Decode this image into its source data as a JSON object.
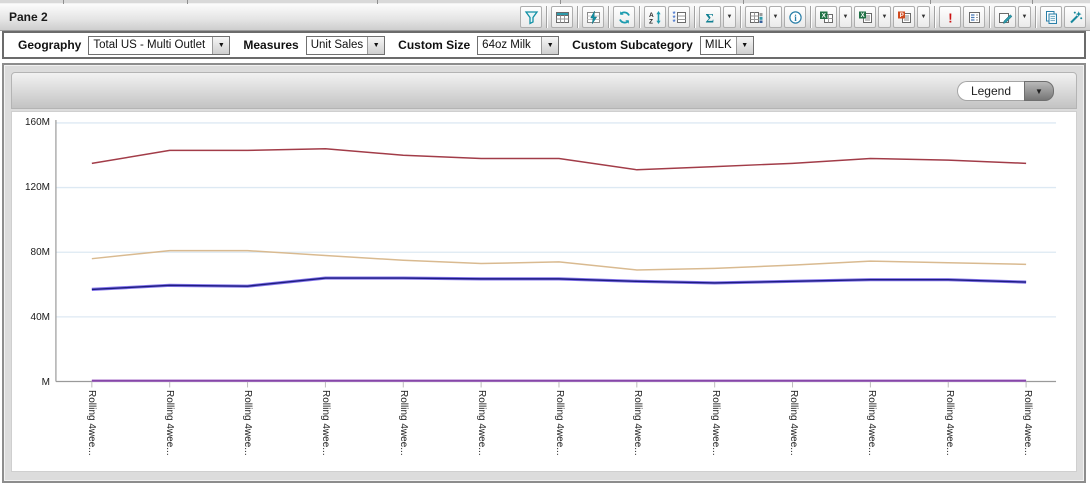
{
  "window": {
    "title": "Pane 2"
  },
  "toolbar": {
    "buttons": [
      {
        "icon": "filter-icon",
        "caret": false
      },
      {
        "icon": "data-table-icon",
        "caret": false
      },
      {
        "icon": "calculated-fields-icon",
        "caret": false
      },
      {
        "icon": "refresh-icon",
        "caret": false
      },
      {
        "icon": "sort-icon",
        "caret": false
      },
      {
        "icon": "multi-select-grid-icon",
        "caret": false
      },
      {
        "icon": "sum-icon",
        "caret": true
      },
      {
        "icon": "grid-view-icon",
        "caret": true
      },
      {
        "icon": "info-icon",
        "caret": false
      },
      {
        "icon": "export-excel-grid-icon",
        "caret": true
      },
      {
        "icon": "export-excel-report-icon",
        "caret": true
      },
      {
        "icon": "export-powerpoint-icon",
        "caret": true
      },
      {
        "icon": "alert-icon",
        "caret": false
      },
      {
        "icon": "report-view-icon",
        "caret": false
      },
      {
        "icon": "edit-icon",
        "caret": true
      },
      {
        "icon": "copy-icon",
        "caret": false
      },
      {
        "icon": "wizard-icon",
        "caret": false
      }
    ]
  },
  "filters": {
    "geography": {
      "label": "Geography",
      "value": "Total US - Multi Outlet"
    },
    "measures": {
      "label": "Measures",
      "value": "Unit Sales"
    },
    "custom_size": {
      "label": "Custom Size",
      "value": "64oz Milk"
    },
    "custom_subcategory": {
      "label": "Custom Subcategory",
      "value": "MILK"
    }
  },
  "legend": {
    "label": "Legend",
    "state": "collapsed"
  },
  "chart_data": {
    "type": "line",
    "title": "",
    "xlabel": "",
    "ylabel": "",
    "ylim": [
      0,
      160
    ],
    "grid": true,
    "legend_position": "collapsed-top-right",
    "unit": "M",
    "categories": [
      "Rolling 4wee...",
      "Rolling 4wee...",
      "Rolling 4wee...",
      "Rolling 4wee...",
      "Rolling 4wee...",
      "Rolling 4wee...",
      "Rolling 4wee...",
      "Rolling 4wee...",
      "Rolling 4wee...",
      "Rolling 4wee...",
      "Rolling 4wee...",
      "Rolling 4wee...",
      "Rolling 4wee..."
    ],
    "yticks": [
      {
        "label": "160M",
        "value": 160
      },
      {
        "label": "120M",
        "value": 120
      },
      {
        "label": "80M",
        "value": 80
      },
      {
        "label": "40M",
        "value": 40
      },
      {
        "label": "M",
        "value": 0
      }
    ],
    "series": [
      {
        "name": "series-red",
        "color": "#a23c48",
        "width": 1.5,
        "values": [
          135,
          143,
          143,
          144,
          140,
          138,
          138,
          131,
          133,
          135,
          138,
          137,
          135
        ]
      },
      {
        "name": "series-tan",
        "color": "#d9ba90",
        "width": 1.5,
        "values": [
          76,
          81,
          81,
          78,
          75,
          73,
          74,
          69,
          70,
          72,
          74.5,
          73.5,
          72.5
        ]
      },
      {
        "name": "series-blue-highlighted",
        "color": "#8374ea",
        "width": 3.2,
        "core": "#1c1c80",
        "core_width": 1.4,
        "values": [
          57,
          59.5,
          59,
          64,
          64,
          63.5,
          63.5,
          62,
          61,
          62,
          63,
          63,
          61.5
        ]
      },
      {
        "name": "series-purple",
        "color": "#a76cc8",
        "width": 2.4,
        "core": "#7b3b9e",
        "core_width": 1,
        "values": [
          0.5,
          0.5,
          0.5,
          0.5,
          0.5,
          0.5,
          0.5,
          0.5,
          0.5,
          0.5,
          0.5,
          0.5,
          0.5
        ]
      }
    ],
    "style": {
      "grid_color": "#dde9f3",
      "axis_color": "#9a9a9a",
      "tick_color": "#bdbdbd"
    }
  }
}
